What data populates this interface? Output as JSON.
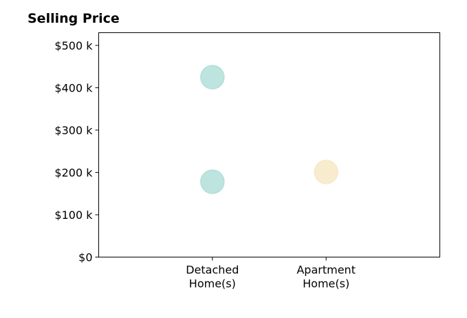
{
  "chart_data": {
    "type": "scatter",
    "title": "Selling Price",
    "xlabel": "",
    "ylabel": "",
    "categories": [
      [
        "Detached",
        "Home(s)"
      ],
      [
        "Apartment",
        "Home(s)"
      ]
    ],
    "y_ticks": [
      {
        "value": 0,
        "label": "$0"
      },
      {
        "value": 100000,
        "label": "$100 k"
      },
      {
        "value": 200000,
        "label": "$200 k"
      },
      {
        "value": 300000,
        "label": "$300 k"
      },
      {
        "value": 400000,
        "label": "$400 k"
      },
      {
        "value": 500000,
        "label": "$500 k"
      }
    ],
    "ylim": [
      0,
      530000
    ],
    "xlim": [
      -1,
      2
    ],
    "grid": false,
    "legend": "none",
    "points": [
      {
        "category_index": 0,
        "y": 425000,
        "color": "#b2dfd8"
      },
      {
        "category_index": 0,
        "y": 178000,
        "color": "#b2dfd8"
      },
      {
        "category_index": 1,
        "y": 201000,
        "color": "#f8e8c4"
      }
    ],
    "colors": {
      "detached": "#b2dfd8",
      "apartment": "#f8e8c4"
    }
  }
}
